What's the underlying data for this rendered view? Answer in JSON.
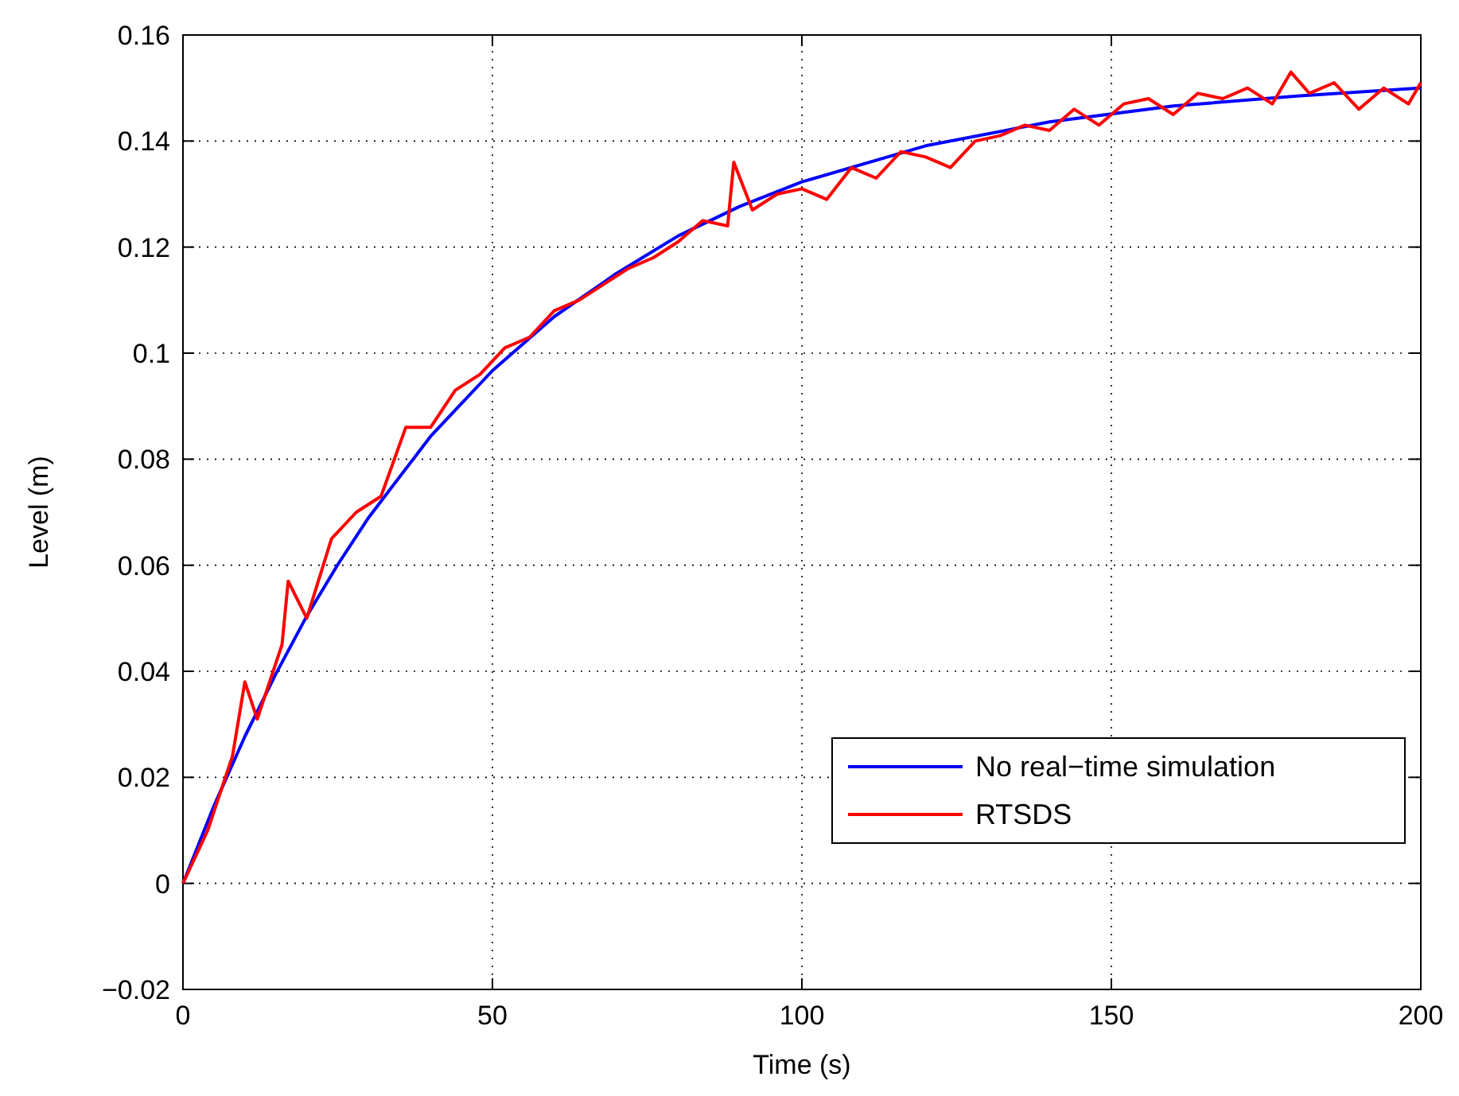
{
  "chart_data": {
    "type": "line",
    "xlabel": "Time (s)",
    "ylabel": "Level (m)",
    "xlim": [
      0,
      200
    ],
    "xticks": [
      0,
      50,
      100,
      150,
      200
    ],
    "ylim": [
      -0.02,
      0.16
    ],
    "yticks": [
      {
        "value": -0.02,
        "label": "−0.02"
      },
      0,
      0.02,
      0.04,
      0.06,
      0.08,
      0.1,
      0.12,
      0.14,
      0.16
    ],
    "grid": true,
    "legend": "bottom right",
    "line_style": "solid",
    "series": [
      {
        "name": "No real−time simulation",
        "color": "#0000ff",
        "x": [
          0,
          5,
          10,
          15,
          20,
          25,
          30,
          40,
          50,
          60,
          70,
          80,
          90,
          100,
          120,
          140,
          160,
          180,
          200
        ],
        "values": [
          0,
          0.0146,
          0.0277,
          0.0395,
          0.0504,
          0.0601,
          0.069,
          0.0843,
          0.0967,
          0.1069,
          0.115,
          0.1221,
          0.1277,
          0.1323,
          0.1391,
          0.1436,
          0.1466,
          0.1485,
          0.15
        ]
      },
      {
        "name": "RTSDS",
        "color": "#ff0000",
        "x": [
          0,
          4,
          8,
          10,
          12,
          16,
          17,
          20,
          24,
          28,
          32,
          36,
          40,
          44,
          48,
          52,
          56,
          60,
          64,
          68,
          72,
          76,
          80,
          84,
          88,
          89,
          92,
          96,
          100,
          104,
          108,
          112,
          116,
          120,
          124,
          128,
          132,
          136,
          140,
          144,
          148,
          152,
          156,
          160,
          164,
          168,
          172,
          176,
          179,
          182,
          186,
          190,
          194,
          198,
          200
        ],
        "values": [
          0,
          0.01,
          0.024,
          0.038,
          0.031,
          0.045,
          0.057,
          0.05,
          0.065,
          0.07,
          0.073,
          0.086,
          0.086,
          0.093,
          0.096,
          0.101,
          0.103,
          0.108,
          0.11,
          0.113,
          0.116,
          0.118,
          0.121,
          0.125,
          0.124,
          0.136,
          0.127,
          0.13,
          0.131,
          0.129,
          0.135,
          0.133,
          0.138,
          0.137,
          0.135,
          0.14,
          0.141,
          0.143,
          0.142,
          0.146,
          0.143,
          0.147,
          0.148,
          0.145,
          0.149,
          0.148,
          0.15,
          0.147,
          0.153,
          0.149,
          0.151,
          0.146,
          0.15,
          0.147,
          0.151
        ]
      }
    ]
  }
}
